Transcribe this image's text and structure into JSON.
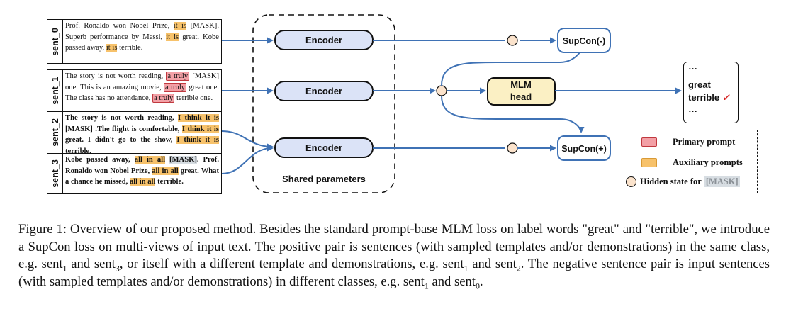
{
  "sentences": [
    {
      "label": "sent_0",
      "parts": [
        [
          "Prof. Ronaldo won Nobel Prize, ",
          ""
        ],
        [
          "it is",
          "aux"
        ],
        [
          " [MASK]. Superb performance by Messi, ",
          ""
        ],
        [
          "it is",
          "aux"
        ],
        [
          " great. Kobe passed away, ",
          ""
        ],
        [
          "it is",
          "aux"
        ],
        [
          " terrible.",
          ""
        ]
      ]
    },
    {
      "label": "sent_1",
      "parts": [
        [
          "The story is not worth reading, ",
          ""
        ],
        [
          "a truly",
          "pri"
        ],
        [
          " [MASK] one. This is an amazing movie, ",
          ""
        ],
        [
          "a truly",
          "pri"
        ],
        [
          " great one. The class has no attendance, ",
          ""
        ],
        [
          "a truly",
          "pri"
        ],
        [
          " terrible one.",
          ""
        ]
      ]
    },
    {
      "label": "sent_2",
      "parts": [
        [
          "The story is not worth reading, ",
          ""
        ],
        [
          "I think it is",
          "aux"
        ],
        [
          " [MASK] .The flight is comfortable, ",
          ""
        ],
        [
          "I think it is",
          "aux"
        ],
        [
          " great. I didn't go to the show, ",
          ""
        ],
        [
          "I think it is",
          "aux"
        ],
        [
          " terrible.",
          ""
        ]
      ]
    },
    {
      "label": "sent_3",
      "parts": [
        [
          "Kobe passed away, ",
          ""
        ],
        [
          "all in all",
          "aux"
        ],
        [
          " ",
          ""
        ],
        [
          "[MASK]",
          "mask"
        ],
        [
          ". Prof. Ronaldo won Nobel Prize, ",
          ""
        ],
        [
          "all in all",
          "aux"
        ],
        [
          " great. What a chance he missed, ",
          ""
        ],
        [
          "all in all",
          "aux"
        ],
        [
          " terrible.",
          ""
        ]
      ]
    }
  ],
  "encoders": {
    "label": "Encoder",
    "shared_label": "Shared parameters"
  },
  "mlm_head": {
    "line1": "MLM",
    "line2": "head"
  },
  "supcon_neg": "SupCon(-)",
  "supcon_pos": "SupCon(+)",
  "output": {
    "dots_top": "…",
    "word1": "great",
    "word2": "terrible",
    "check": "✓",
    "dots_bottom": "…"
  },
  "legend": {
    "primary": "Primary prompt",
    "auxiliary": "Auxiliary prompts",
    "hidden": "Hidden state for",
    "mask": "[MASK]"
  },
  "caption": [
    [
      "Figure 1: Overview of our proposed method. Besides the standard prompt-base MLM loss on label words \"great\" and \"terrible\", we introduce a SupCon loss on multi-views of input text. The positive pair is sentences (with sampled templates and/or demonstrations) in the same class, e.g. sent",
      ""
    ],
    [
      "1",
      "sub"
    ],
    [
      " and sent",
      ""
    ],
    [
      "3",
      "sub"
    ],
    [
      ", or itself with a different template and demonstrations, e.g. sent",
      ""
    ],
    [
      "1",
      "sub"
    ],
    [
      " and sent",
      ""
    ],
    [
      "2",
      "sub"
    ],
    [
      ". The negative sentence pair is input sentences (with sampled templates and/or demonstrations) in different classes, e.g. sent",
      ""
    ],
    [
      "1",
      "sub"
    ],
    [
      " and sent",
      ""
    ],
    [
      "0",
      "sub"
    ],
    [
      ".",
      ""
    ]
  ],
  "colors": {
    "encoder_fill": "#dbe3f7",
    "supcon_fill": "#ffffff",
    "mlm_fill": "#fbf0c4",
    "arrow": "#3f72b5",
    "primary": "#f3a0a6",
    "auxiliary": "#f7c26b",
    "hidden": "#fbe3cc"
  }
}
